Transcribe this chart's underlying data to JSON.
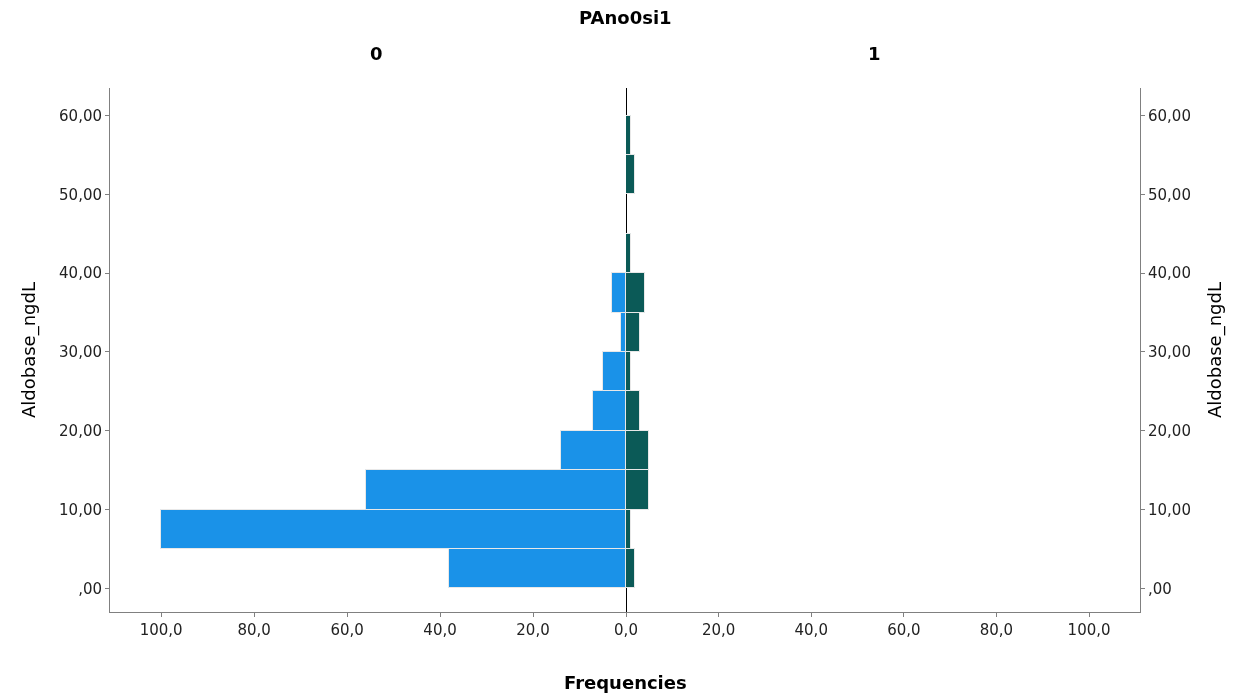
{
  "chart_data": [
    {
      "type": "histogram",
      "orientation": "horizontal",
      "title": "0",
      "annotations": [
        "PAno0si1"
      ],
      "xlabel": "Frequencies",
      "ylabel": "Aldobase_ngdL",
      "color": "#1a92e8",
      "bins": [
        0,
        5,
        10,
        15,
        20,
        25,
        30,
        35,
        40,
        45,
        50,
        55,
        60
      ],
      "values": [
        38,
        100,
        56,
        14,
        7,
        5,
        1,
        3,
        null,
        null,
        null,
        null
      ],
      "xlim": [
        111,
        0
      ],
      "xticks": [
        {
          "value": 100,
          "label": "100,0"
        },
        {
          "value": 80,
          "label": "80,0"
        },
        {
          "value": 60,
          "label": "60,0"
        },
        {
          "value": 40,
          "label": "40,0"
        },
        {
          "value": 20,
          "label": "20,0"
        },
        {
          "value": 0,
          "label": "0,0"
        }
      ],
      "ylim": [
        -3,
        63.5
      ],
      "yticks": [
        {
          "value": 0,
          "label": ",00"
        },
        {
          "value": 10,
          "label": "10,00"
        },
        {
          "value": 20,
          "label": "20,00"
        },
        {
          "value": 30,
          "label": "30,00"
        },
        {
          "value": 40,
          "label": "40,00"
        },
        {
          "value": 50,
          "label": "50,00"
        },
        {
          "value": 60,
          "label": "60,00"
        }
      ]
    },
    {
      "type": "histogram",
      "orientation": "horizontal",
      "title": "1",
      "ylabel": "Aldobase_ngdL",
      "color": "#0b5a57",
      "bins": [
        0,
        5,
        10,
        15,
        20,
        25,
        30,
        35,
        40,
        45,
        50,
        55,
        60
      ],
      "values": [
        2,
        1,
        5,
        5,
        3,
        1,
        3,
        4,
        1,
        null,
        2,
        1
      ],
      "xlim": [
        0,
        111
      ],
      "xticks": [
        {
          "value": 20,
          "label": "20,0"
        },
        {
          "value": 40,
          "label": "40,0"
        },
        {
          "value": 60,
          "label": "60,0"
        },
        {
          "value": 80,
          "label": "80,0"
        },
        {
          "value": 100,
          "label": "100,0"
        }
      ],
      "ylim": [
        -3,
        63.5
      ],
      "yticks": [
        {
          "value": 0,
          "label": ",00"
        },
        {
          "value": 10,
          "label": "10,00"
        },
        {
          "value": 20,
          "label": "20,00"
        },
        {
          "value": 30,
          "label": "30,00"
        },
        {
          "value": 40,
          "label": "40,00"
        },
        {
          "value": 50,
          "label": "50,00"
        },
        {
          "value": 60,
          "label": "60,00"
        }
      ]
    }
  ]
}
